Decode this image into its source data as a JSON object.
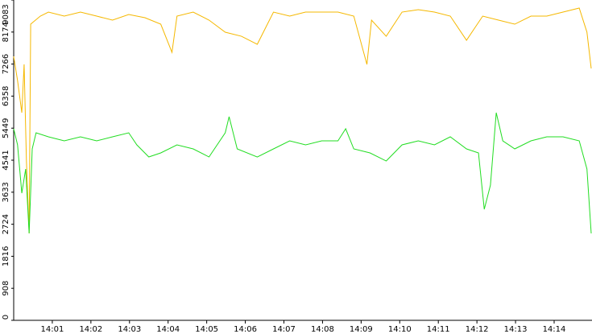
{
  "chart_data": {
    "type": "line",
    "xlim": [
      0,
      14.96
    ],
    "xticks": [
      {
        "value": 1,
        "label": "14:01"
      },
      {
        "value": 2,
        "label": "14:02"
      },
      {
        "value": 3,
        "label": "14:03"
      },
      {
        "value": 4,
        "label": "14:04"
      },
      {
        "value": 5,
        "label": "14:05"
      },
      {
        "value": 6,
        "label": "14:06"
      },
      {
        "value": 7,
        "label": "14:07"
      },
      {
        "value": 8,
        "label": "14:08"
      },
      {
        "value": 9,
        "label": "14:09"
      },
      {
        "value": 10,
        "label": "14:10"
      },
      {
        "value": 11,
        "label": "14:11"
      },
      {
        "value": 12,
        "label": "14:12"
      },
      {
        "value": 13,
        "label": "14:13"
      },
      {
        "value": 14,
        "label": "14:14"
      }
    ],
    "ylim": [
      0,
      9083
    ],
    "yticks": [
      0,
      908,
      1816,
      2724,
      3633,
      4541,
      5449,
      6358,
      7266,
      8174,
      9083
    ],
    "series": [
      {
        "color": "#f5b800",
        "x": [
          0,
          0.1,
          0.21,
          0.27,
          0.33,
          0.4,
          0.44,
          0.69,
          0.9,
          1.31,
          1.73,
          2.15,
          2.56,
          2.98,
          3.4,
          3.81,
          4.1,
          4.23,
          4.65,
          5.06,
          5.48,
          5.9,
          6.31,
          6.52,
          6.73,
          7.15,
          7.56,
          7.98,
          8.4,
          8.81,
          9.15,
          9.27,
          9.65,
          10.06,
          10.48,
          10.9,
          11.31,
          11.73,
          11.94,
          12.15,
          12.56,
          12.98,
          13.4,
          13.81,
          14.23,
          14.65,
          14.85,
          14.96
        ],
        "values": [
          7485,
          6800,
          5888,
          7257,
          4518,
          2465,
          8398,
          8626,
          8740,
          8626,
          8740,
          8626,
          8512,
          8672,
          8580,
          8398,
          7599,
          8626,
          8740,
          8512,
          8170,
          8055,
          7827,
          8284,
          8740,
          8626,
          8740,
          8740,
          8740,
          8626,
          7257,
          8512,
          8055,
          8740,
          8809,
          8740,
          8626,
          7941,
          8284,
          8626,
          8512,
          8398,
          8626,
          8626,
          8740,
          8854,
          8170,
          7143
        ]
      },
      {
        "color": "#22dd22",
        "x": [
          0,
          0.1,
          0.21,
          0.31,
          0.4,
          0.48,
          0.58,
          0.9,
          1.31,
          1.73,
          2.15,
          2.56,
          2.98,
          3.19,
          3.5,
          3.81,
          4.23,
          4.65,
          5.06,
          5.48,
          5.58,
          5.79,
          6.31,
          6.73,
          7.15,
          7.56,
          7.98,
          8.4,
          8.6,
          8.81,
          9.23,
          9.65,
          10.06,
          10.48,
          10.9,
          11.31,
          11.73,
          12.04,
          12.19,
          12.35,
          12.5,
          12.67,
          12.98,
          13.4,
          13.81,
          14.23,
          14.65,
          14.85,
          14.96
        ],
        "values": [
          5431,
          4975,
          3606,
          4290,
          2465,
          4861,
          5317,
          5203,
          5089,
          5203,
          5089,
          5203,
          5317,
          4975,
          4632,
          4747,
          4975,
          4861,
          4632,
          5317,
          5773,
          4861,
          4632,
          4861,
          5089,
          4975,
          5089,
          5089,
          5431,
          4861,
          4747,
          4518,
          4975,
          5089,
          4975,
          5203,
          4861,
          4747,
          3149,
          3834,
          5888,
          5089,
          4861,
          5089,
          5203,
          5203,
          5089,
          4290,
          2465
        ]
      }
    ]
  }
}
